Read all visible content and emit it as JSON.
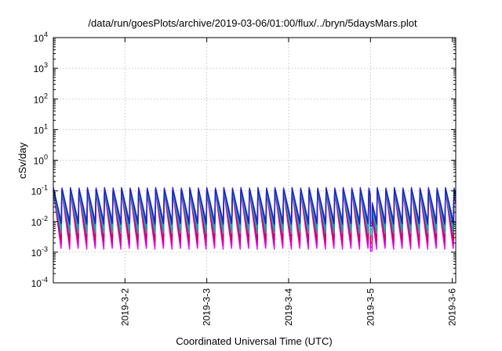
{
  "chart_data": {
    "type": "line",
    "title": "/data/run/goesPlots/archive/2019-03-06/01:00/flux/../bryn/5daysMars.plot",
    "xlabel": "Coordinated Universal Time (UTC)",
    "ylabel": "cSv/day",
    "x_scale": "time",
    "xlim": [
      "2019-03-01T03:00",
      "2019-03-06T01:00"
    ],
    "y_scale": "log",
    "ylim": [
      0.0001,
      10000
    ],
    "x_ticks": [
      "2019-3-2",
      "2019-3-3",
      "2019-3-4",
      "2019-3-5",
      "2019-3-6"
    ],
    "x_tick_times": [
      "2019-03-02T00:00",
      "2019-03-03T00:00",
      "2019-03-04T00:00",
      "2019-03-05T00:00",
      "2019-03-06T00:00"
    ],
    "y_ticks": [
      {
        "base": "10",
        "exp": "-4",
        "value": 0.0001
      },
      {
        "base": "10",
        "exp": "-3",
        "value": 0.001
      },
      {
        "base": "10",
        "exp": "-2",
        "value": 0.01
      },
      {
        "base": "10",
        "exp": "-1",
        "value": 0.1
      },
      {
        "base": "10",
        "exp": "0",
        "value": 1
      },
      {
        "base": "10",
        "exp": "1",
        "value": 10
      },
      {
        "base": "10",
        "exp": "2",
        "value": 100
      },
      {
        "base": "10",
        "exp": "3",
        "value": 1000
      },
      {
        "base": "10",
        "exp": "4",
        "value": 10000
      }
    ],
    "grid": true,
    "legend": "none",
    "pattern": {
      "period_hours": 2.5,
      "first_peak": "2019-03-01T03:00",
      "data_gap": [
        "2019-03-05T00:00",
        "2019-03-05T00:30"
      ]
    },
    "series": [
      {
        "color": "#ff00ff",
        "peak": 0.1,
        "trough": 0.0012
      },
      {
        "color": "#cc00cc",
        "peak": 0.1,
        "trough": 0.0016
      },
      {
        "color": "#d10050",
        "peak": 0.11,
        "trough": 0.0022
      },
      {
        "color": "#20a0a0",
        "peak": 0.1,
        "trough": 0.004
      },
      {
        "color": "#00b0c0",
        "peak": 0.11,
        "trough": 0.006
      },
      {
        "color": "#4040e0",
        "peak": 0.13,
        "trough": 0.01
      },
      {
        "color": "#2020c0",
        "peak": 0.12,
        "trough": 0.008
      }
    ]
  }
}
